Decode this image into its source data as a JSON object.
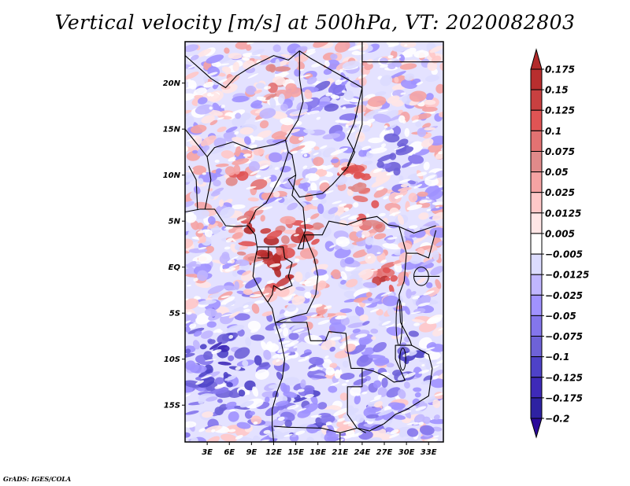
{
  "chart_data": {
    "type": "heatmap",
    "title": "Vertical velocity [m/s] at 500hPa, VT: 2020082803",
    "variable": "Vertical velocity",
    "units": "m/s",
    "level": "500hPa",
    "valid_time": "2020082803",
    "xlabel": "",
    "ylabel": "",
    "x_range_deg": [
      0,
      35
    ],
    "y_range_deg": [
      -19,
      24.5
    ],
    "x_ticks": [
      3,
      6,
      9,
      12,
      15,
      18,
      21,
      24,
      27,
      30,
      33
    ],
    "x_tick_labels": [
      "3E",
      "6E",
      "9E",
      "12E",
      "15E",
      "18E",
      "21E",
      "24E",
      "27E",
      "30E",
      "33E"
    ],
    "y_ticks": [
      20,
      15,
      10,
      5,
      0,
      -5,
      -10,
      -15
    ],
    "y_tick_labels": [
      "20N",
      "15N",
      "10N",
      "5N",
      "EQ",
      "5S",
      "10S",
      "15S"
    ],
    "colorbar": {
      "placement": "right",
      "extend": "both",
      "levels": [
        0.175,
        0.15,
        0.125,
        0.1,
        0.075,
        0.05,
        0.025,
        0.0125,
        0.005,
        -0.005,
        -0.0125,
        -0.025,
        -0.05,
        -0.075,
        -0.1,
        -0.125,
        -0.175,
        -0.2
      ],
      "level_labels": [
        "0.175",
        "0.15",
        "0.125",
        "0.1",
        "0.075",
        "0.05",
        "0.025",
        "0.0125",
        "0.005",
        "−0.005",
        "−0.0125",
        "−0.025",
        "−0.05",
        "−0.075",
        "−0.1",
        "−0.125",
        "−0.175",
        "−0.2"
      ],
      "colors_top_to_bottom": [
        "#b22a2a",
        "#b82e2e",
        "#c84040",
        "#e05454",
        "#e37272",
        "#e08a8a",
        "#f5a3a3",
        "#ffc8c8",
        "#ffe6e6",
        "#ffffff",
        "#dcdcff",
        "#c0b6ff",
        "#a092ff",
        "#8476ec",
        "#6e62d8",
        "#4e42c8",
        "#3e2ab8",
        "#2e22a2",
        "#2a0a9a"
      ]
    },
    "features": [
      {
        "description": "Strong ascent (red) cluster over Cameroon / Gabon / Congo coast near 0-5N, 8-15E"
      },
      {
        "description": "Ascent band near Chad-Sudan border around 10-12N, 22-24E"
      },
      {
        "description": "Red cells over eastern DRC near 0-3S, 27-28E"
      },
      {
        "description": "Mostly weak descent (blue) over Atlantic and southern Africa"
      }
    ]
  },
  "footer": "GrADS: IGES/COLA"
}
